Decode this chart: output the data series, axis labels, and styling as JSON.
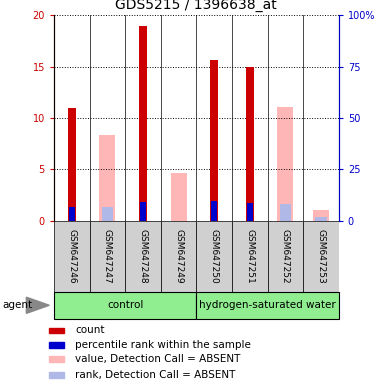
{
  "title": "GDS5215 / 1396638_at",
  "samples": [
    "GSM647246",
    "GSM647247",
    "GSM647248",
    "GSM647249",
    "GSM647250",
    "GSM647251",
    "GSM647252",
    "GSM647253"
  ],
  "red_bars": [
    11.0,
    null,
    19.0,
    null,
    15.7,
    15.0,
    null,
    null
  ],
  "blue_bars": [
    6.5,
    null,
    9.2,
    null,
    9.7,
    8.9,
    null,
    null
  ],
  "pink_bars": [
    null,
    8.4,
    null,
    4.7,
    null,
    null,
    11.1,
    1.1
  ],
  "lightblue_bars": [
    null,
    6.8,
    null,
    null,
    null,
    null,
    8.3,
    1.8
  ],
  "ylim_left": [
    0,
    20
  ],
  "ylim_right": [
    0,
    100
  ],
  "left_ticks": [
    0,
    5,
    10,
    15,
    20
  ],
  "right_ticks": [
    0,
    25,
    50,
    75,
    100
  ],
  "left_tick_labels": [
    "0",
    "5",
    "10",
    "15",
    "20"
  ],
  "right_tick_labels": [
    "0",
    "25",
    "50",
    "75",
    "100%"
  ],
  "left_color": "#cc0000",
  "right_color": "#0000cc",
  "legend_items": [
    {
      "label": "count",
      "color": "#cc0000"
    },
    {
      "label": "percentile rank within the sample",
      "color": "#0000cc"
    },
    {
      "label": "value, Detection Call = ABSENT",
      "color": "#ffb6b6"
    },
    {
      "label": "rank, Detection Call = ABSENT",
      "color": "#b0b8e8"
    }
  ],
  "control_label": "control",
  "hydrogen_label": "hydrogen-saturated water",
  "agent_label": "agent",
  "group_bg_color": "#90EE90",
  "sample_bg_color": "#d0d0d0",
  "figsize": [
    3.85,
    3.84
  ],
  "dpi": 100
}
